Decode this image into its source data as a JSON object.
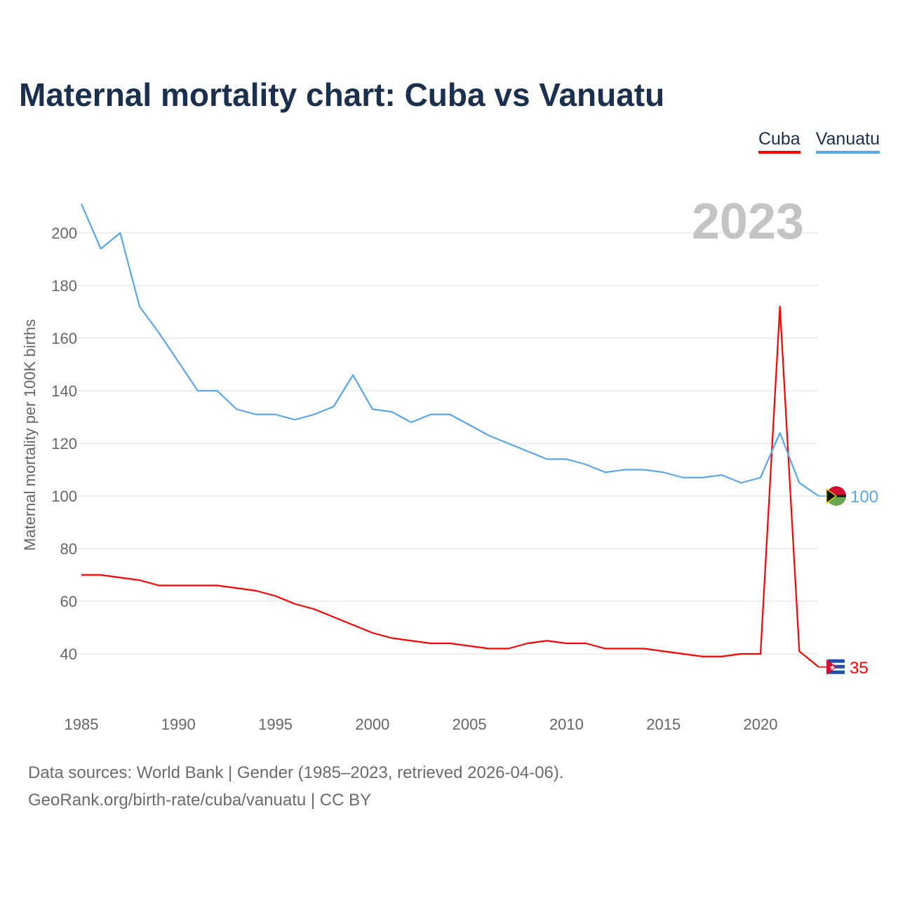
{
  "chart_data": {
    "type": "line",
    "title": "Maternal mortality chart: Cuba vs Vanuatu",
    "ylabel": "Maternal mortality per 100K births",
    "xlabel": "",
    "year_label": "2023",
    "xlim": [
      1985,
      2023
    ],
    "ylim": [
      25,
      215
    ],
    "yticks": [
      40,
      60,
      80,
      100,
      120,
      140,
      160,
      180,
      200
    ],
    "xticks": [
      1985,
      1990,
      1995,
      2000,
      2005,
      2010,
      2015,
      2020
    ],
    "grid": true,
    "legend_position": "top-right",
    "x": [
      1985,
      1986,
      1987,
      1988,
      1989,
      1990,
      1991,
      1992,
      1993,
      1994,
      1995,
      1996,
      1997,
      1998,
      1999,
      2000,
      2001,
      2002,
      2003,
      2004,
      2005,
      2006,
      2007,
      2008,
      2009,
      2010,
      2011,
      2012,
      2013,
      2014,
      2015,
      2016,
      2017,
      2018,
      2019,
      2020,
      2021,
      2022,
      2023
    ],
    "series": [
      {
        "name": "Cuba",
        "color": "#ff0000",
        "end_label": "35",
        "values": [
          70,
          70,
          69,
          68,
          66,
          66,
          66,
          66,
          65,
          64,
          62,
          59,
          57,
          54,
          51,
          48,
          46,
          45,
          44,
          44,
          43,
          42,
          42,
          44,
          45,
          44,
          44,
          42,
          42,
          42,
          41,
          40,
          39,
          39,
          40,
          40,
          172,
          41,
          35
        ]
      },
      {
        "name": "Vanuatu",
        "color": "#5aa6ea",
        "end_label": "100",
        "values": [
          211,
          194,
          200,
          172,
          162,
          151,
          140,
          140,
          133,
          131,
          131,
          129,
          131,
          134,
          146,
          133,
          132,
          128,
          131,
          131,
          127,
          123,
          120,
          117,
          114,
          114,
          112,
          109,
          110,
          110,
          109,
          107,
          107,
          108,
          105,
          107,
          124,
          105,
          100
        ]
      }
    ]
  },
  "footer": {
    "line1": "Data sources: World Bank | Gender (1985–2023, retrieved 2026-04-06).",
    "line2": "GeoRank.org/birth-rate/cuba/vanuatu | CC BY"
  }
}
